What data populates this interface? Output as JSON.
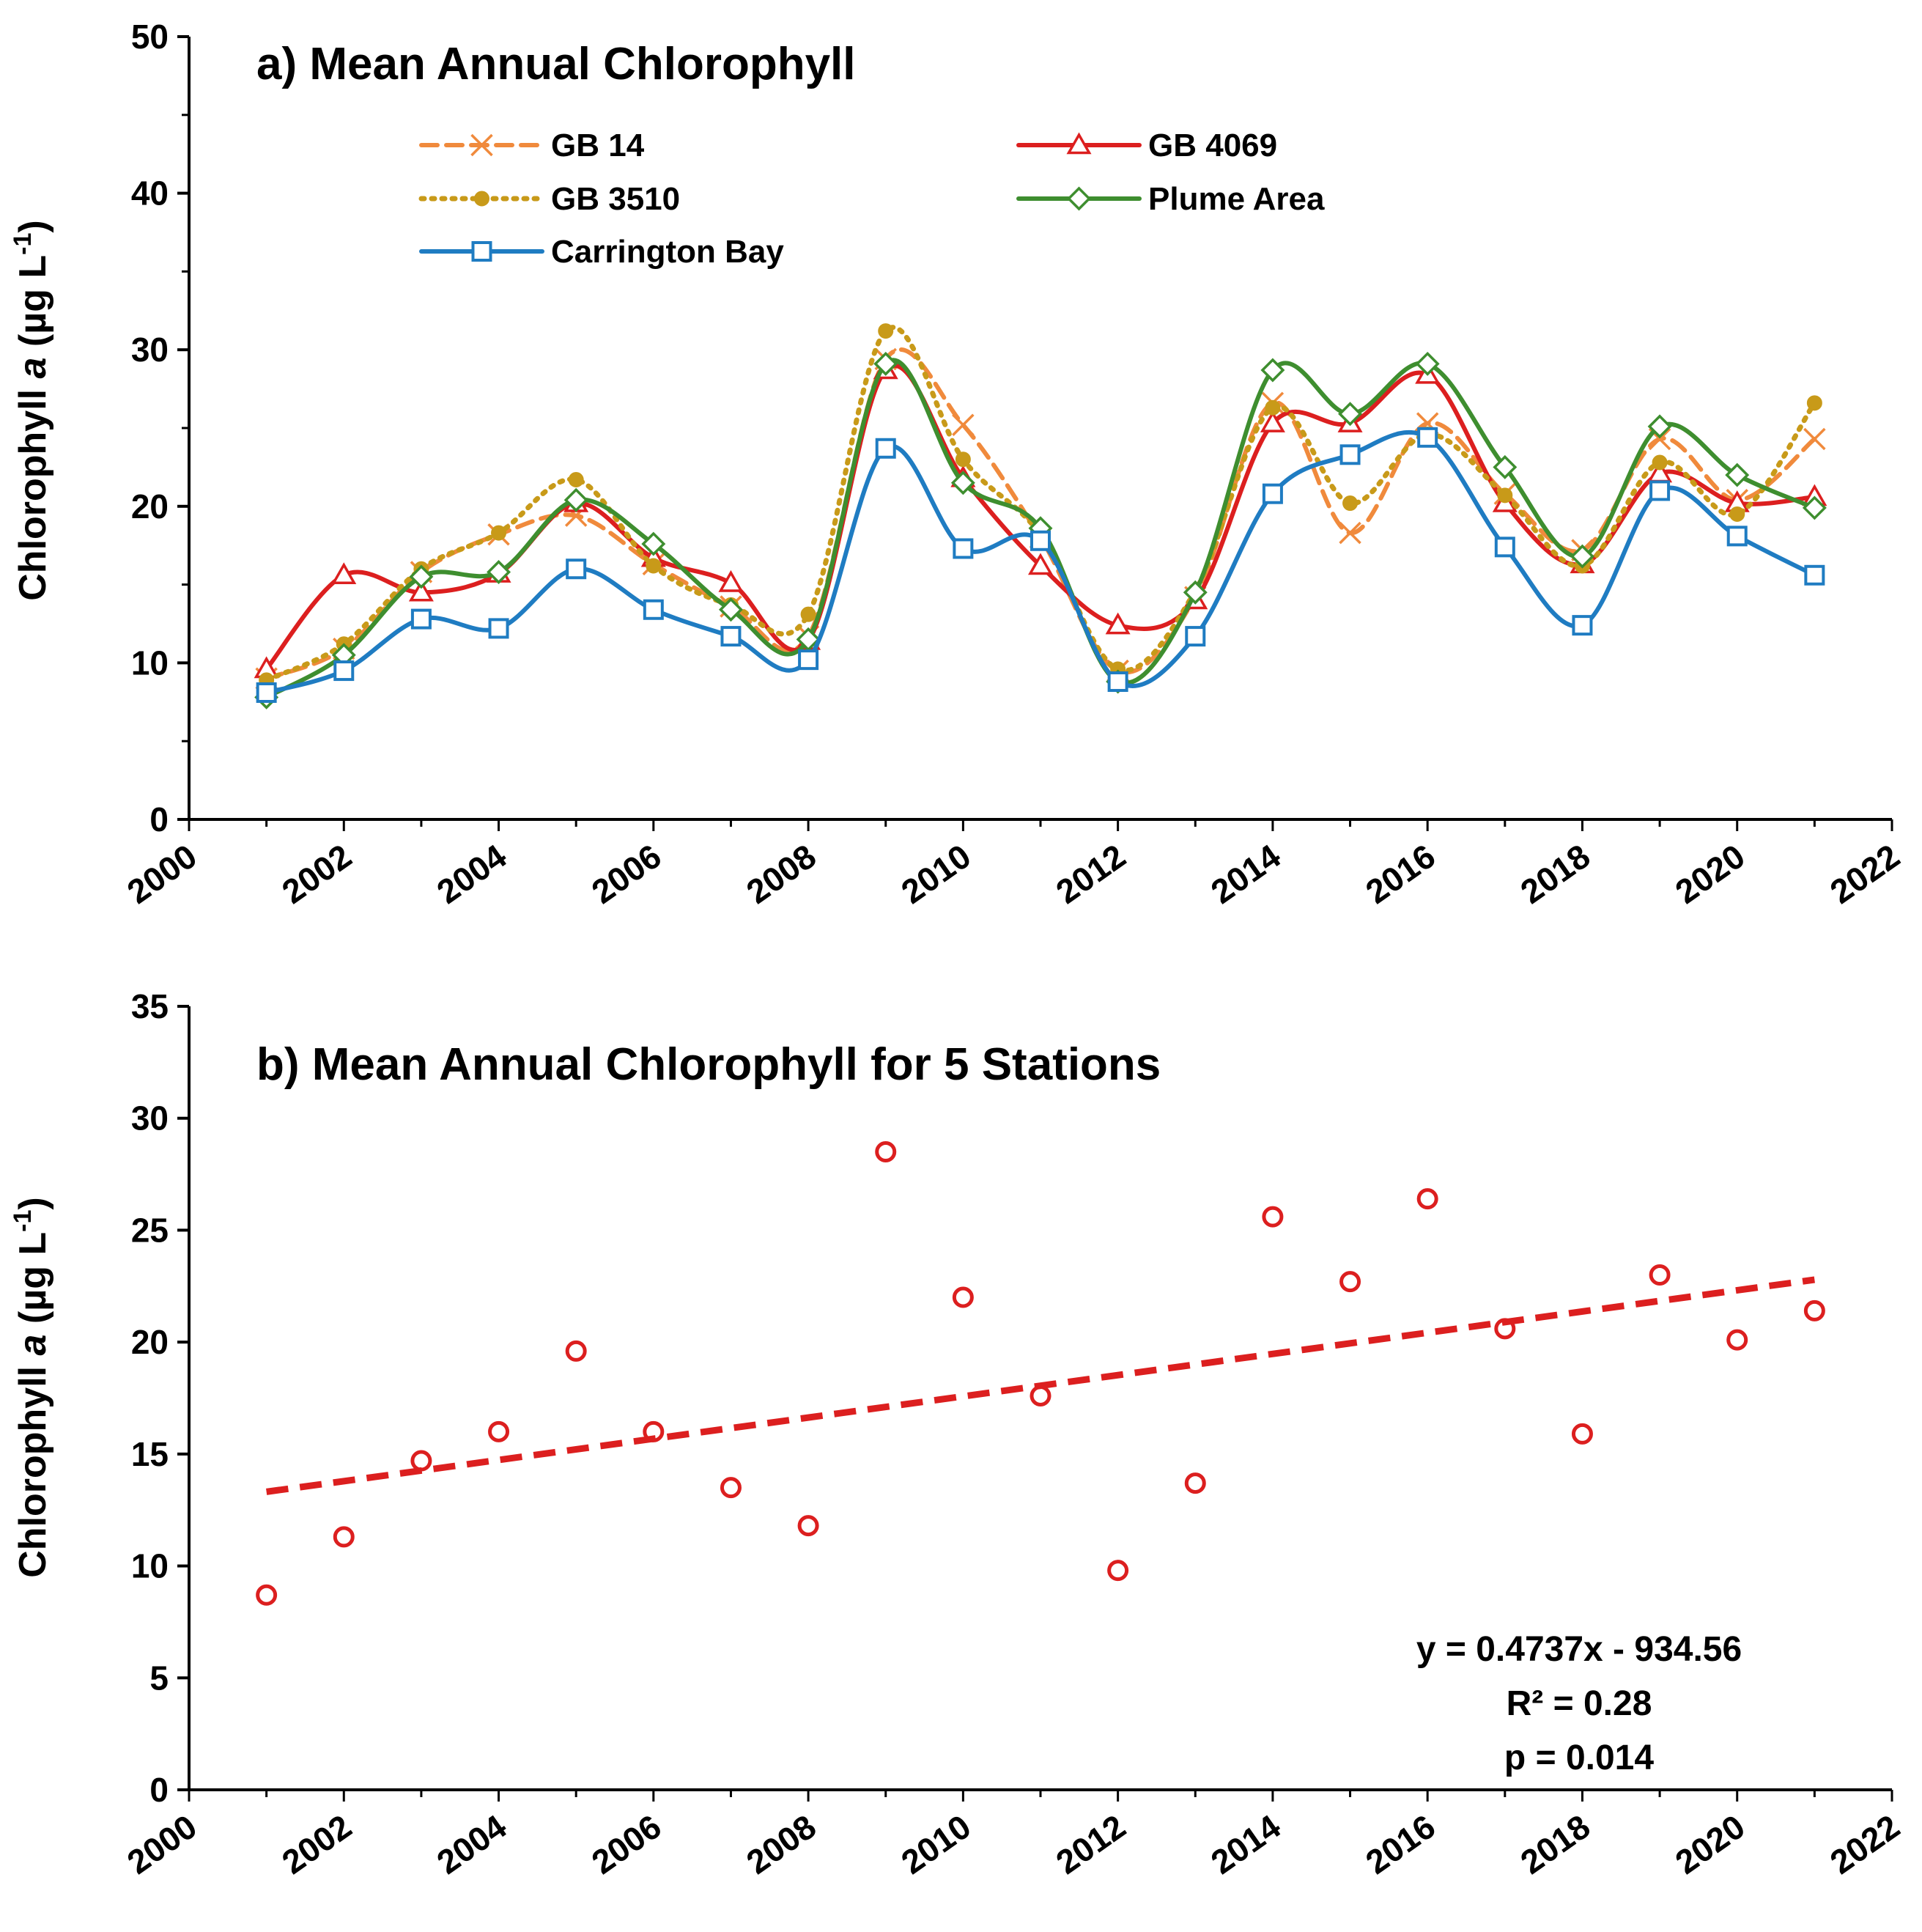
{
  "colors": {
    "gb14": "#F08A3C",
    "gb4069": "#DC1F1F",
    "gb3510": "#C89A19",
    "plume": "#3E8E2F",
    "carrington": "#1F7CC2",
    "scatter": "#DC1F1F",
    "axis": "#000000"
  },
  "chart_data": [
    {
      "type": "line",
      "title": "a)  Mean Annual Chlorophyll",
      "xlabel": "",
      "ylabel_main": "Chlorophyll ",
      "ylabel_italic": "a",
      "ylabel_unit": "  (µg L",
      "ylabel_sup": "-1",
      "ylabel_close": ")",
      "xlim": [
        2000,
        2022
      ],
      "ylim": [
        0,
        50
      ],
      "x_ticks": [
        "2000",
        "2002",
        "2004",
        "2006",
        "2008",
        "2010",
        "2012",
        "2014",
        "2016",
        "2018",
        "2020",
        "2022"
      ],
      "y_ticks": [
        "0",
        "10",
        "20",
        "30",
        "40",
        "50"
      ],
      "legend_position": "top",
      "x": [
        2001,
        2002,
        2003,
        2004,
        2005,
        2006,
        2007,
        2008,
        2009,
        2010,
        2011,
        2012,
        2013,
        2014,
        2015,
        2016,
        2017,
        2018,
        2019,
        2020,
        2021
      ],
      "series": [
        {
          "name": "GB 14",
          "key": "gb14",
          "marker": "x",
          "dash": "dashed",
          "values": [
            9.0,
            10.9,
            15.8,
            18.2,
            19.4,
            16.3,
            13.6,
            11.7,
            29.4,
            25.2,
            18.0,
            9.5,
            14.2,
            26.6,
            18.3,
            25.3,
            20.8,
            17.2,
            24.3,
            20.4,
            24.3
          ]
        },
        {
          "name": "GB 4069",
          "key": "gb4069",
          "marker": "triangle",
          "dash": "solid",
          "values": [
            9.6,
            15.6,
            14.5,
            15.7,
            20.2,
            16.7,
            15.1,
            11.4,
            28.7,
            21.8,
            16.2,
            12.4,
            14.0,
            25.3,
            25.3,
            28.4,
            20.2,
            16.3,
            22.1,
            20.2,
            20.6
          ]
        },
        {
          "name": "GB 3510",
          "key": "gb3510",
          "marker": "circle",
          "dash": "dotted",
          "values": [
            8.9,
            11.2,
            16.0,
            18.3,
            21.7,
            16.2,
            13.7,
            13.1,
            31.2,
            23.0,
            18.2,
            9.6,
            14.6,
            26.3,
            20.2,
            24.6,
            20.7,
            16.2,
            22.8,
            19.5,
            26.6
          ]
        },
        {
          "name": "Plume Area",
          "key": "plume",
          "marker": "diamond",
          "dash": "solid",
          "values": [
            7.8,
            10.5,
            15.5,
            15.8,
            20.4,
            17.6,
            13.4,
            11.5,
            29.1,
            21.5,
            18.6,
            8.8,
            14.5,
            28.7,
            25.9,
            29.1,
            22.5,
            16.8,
            25.1,
            22.0,
            19.9
          ]
        },
        {
          "name": "Carrington Bay",
          "key": "carrington",
          "marker": "square",
          "dash": "solid",
          "values": [
            8.1,
            9.5,
            12.8,
            12.2,
            16.0,
            13.4,
            11.7,
            10.2,
            23.7,
            17.3,
            17.8,
            8.8,
            11.7,
            20.8,
            23.3,
            24.4,
            17.4,
            12.4,
            21.0,
            18.1,
            15.6
          ]
        }
      ]
    },
    {
      "type": "scatter",
      "title": "b)  Mean Annual Chlorophyll for 5 Stations",
      "xlabel": "",
      "ylabel_main": "Chlorophyll ",
      "ylabel_italic": "a",
      "ylabel_unit": "  (µg L",
      "ylabel_sup": "-1",
      "ylabel_close": ")",
      "xlim": [
        2000,
        2022
      ],
      "ylim": [
        0,
        35
      ],
      "x_ticks": [
        "2000",
        "2002",
        "2004",
        "2006",
        "2008",
        "2010",
        "2012",
        "2014",
        "2016",
        "2018",
        "2020",
        "2022"
      ],
      "y_ticks": [
        "0",
        "5",
        "10",
        "15",
        "20",
        "25",
        "30",
        "35"
      ],
      "x": [
        2001,
        2002,
        2003,
        2004,
        2005,
        2006,
        2007,
        2008,
        2009,
        2010,
        2011,
        2012,
        2013,
        2014,
        2015,
        2016,
        2017,
        2018,
        2019,
        2020,
        2021
      ],
      "values": [
        8.7,
        11.3,
        14.7,
        16.0,
        19.6,
        16.0,
        13.5,
        11.8,
        28.5,
        22.0,
        17.6,
        9.8,
        13.7,
        25.6,
        22.7,
        26.4,
        20.6,
        15.9,
        23.0,
        20.1,
        21.4
      ],
      "trendline": {
        "slope": 0.4737,
        "intercept": -934.56,
        "x_range": [
          2001,
          2021
        ]
      },
      "annotations": [
        "y = 0.4737x - 934.56",
        "R² = 0.28",
        "p = 0.014"
      ]
    }
  ]
}
